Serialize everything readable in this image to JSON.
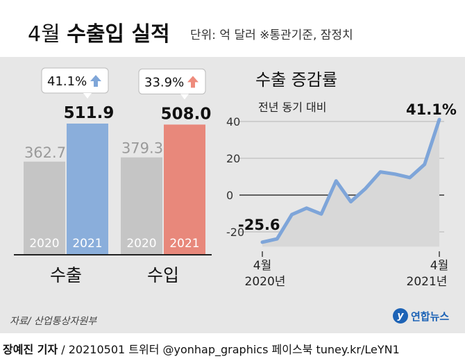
{
  "header": {
    "title_month": "4월",
    "title_bold": "수출입 실적",
    "unit_note": "단위: 억 달러  ※통관기준, 잠정치"
  },
  "colors": {
    "export_2021": "#8aaedb",
    "import_2021": "#e8887b",
    "prior_year": "#c5c5c5",
    "up_arrow_export": "#7fa6d8",
    "up_arrow_import": "#ee8b7c",
    "line": "#7ea5d9"
  },
  "chart_data": [
    {
      "type": "bar",
      "categories": [
        "수출",
        "수입"
      ],
      "series": [
        {
          "name": "2020",
          "values": [
            362.7,
            379.3
          ]
        },
        {
          "name": "2021",
          "values": [
            511.9,
            508.0
          ]
        }
      ],
      "value_labels": {
        "2020": [
          "362.7",
          "379.3"
        ],
        "2021": [
          "511.9",
          "508.0"
        ]
      },
      "growth_labels": [
        "41.1%",
        "33.9%"
      ]
    },
    {
      "type": "area",
      "title": "수출 증감률",
      "subtitle": "전년 동기 대비",
      "x_labels": {
        "start_month": "4월",
        "start_year": "2020년",
        "end_month": "4월",
        "end_year": "2021년"
      },
      "y_ticks": [
        "40",
        "20",
        "0",
        "-20"
      ],
      "ylim": [
        -28,
        48
      ],
      "values": [
        -25.6,
        -23.8,
        -10.6,
        -7.1,
        -10.3,
        7.7,
        -3.6,
        3.6,
        12.6,
        11.4,
        9.5,
        16.7,
        41.1
      ],
      "first_label": "-25.6",
      "last_label": "41.1%",
      "grid": true
    }
  ],
  "footer": {
    "source": "자료/ 산업통상자원부",
    "logo_text": "연합뉴스",
    "credit_bold": "장예진 기자",
    "credit_rest": " / 20210501 트위터 @yonhap_graphics  페이스북 tuney.kr/LeYN1"
  }
}
